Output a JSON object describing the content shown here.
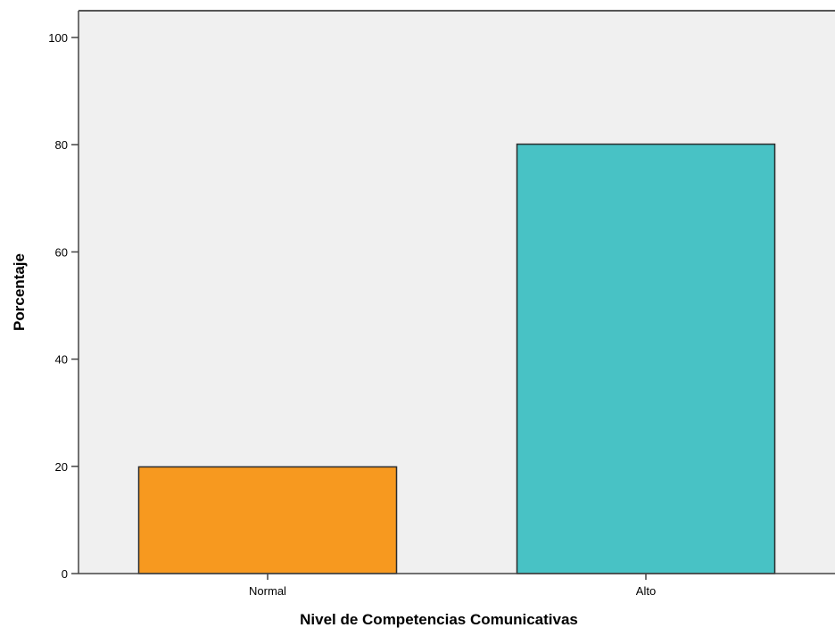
{
  "chart_data": {
    "type": "bar",
    "categories": [
      "Normal",
      "Alto"
    ],
    "values": [
      19.9,
      80.1
    ],
    "colors": [
      "#f7991f",
      "#48c2c5"
    ],
    "xlabel": "Nivel de Competencias Comunicativas",
    "ylabel": "Porcentaje",
    "ylim": [
      0,
      105
    ],
    "yticks": [
      0,
      20,
      40,
      60,
      80,
      100
    ],
    "grid": false,
    "plot_background": "#f0f0f0",
    "bar_edge_color": "#2b2b2b"
  }
}
